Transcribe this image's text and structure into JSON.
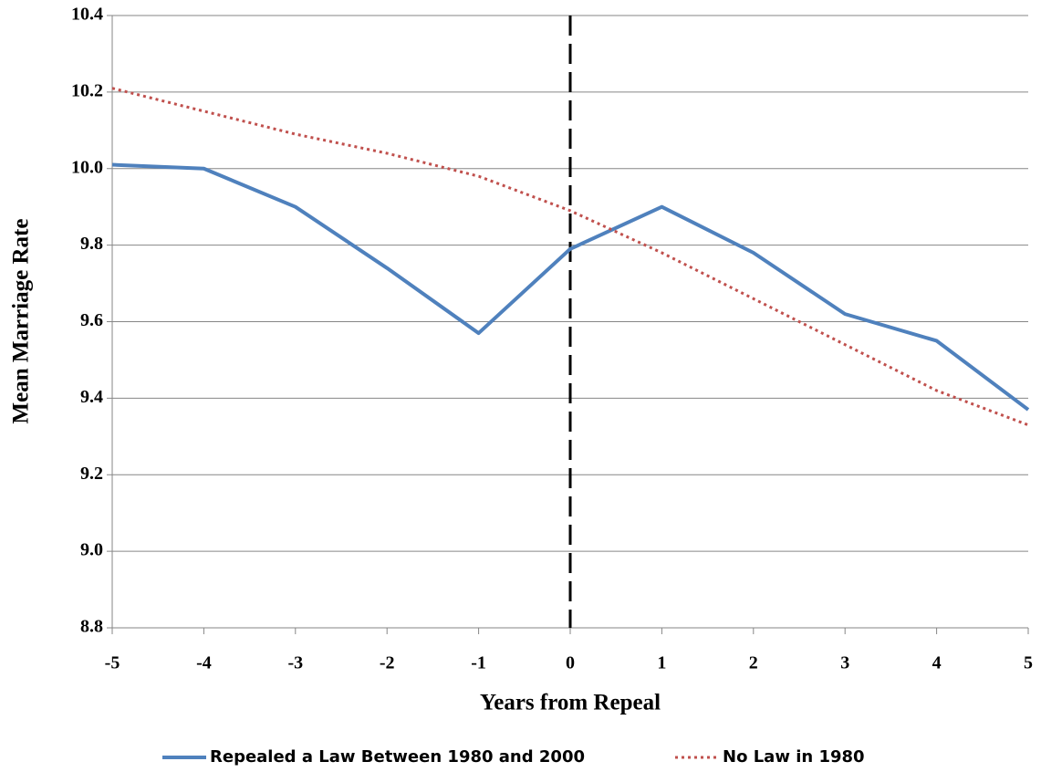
{
  "chart_data": {
    "type": "line",
    "x_label": "Years from Repeal",
    "y_label": "Mean Marriage Rate",
    "x": [
      -5,
      -4,
      -3,
      -2,
      -1,
      0,
      1,
      2,
      3,
      4,
      5
    ],
    "series": [
      {
        "name": "Repealed a Law Between 1980 and 2000",
        "color": "#4f81bd",
        "style": "solid",
        "values": [
          10.01,
          10.0,
          9.9,
          9.74,
          9.57,
          9.79,
          9.9,
          9.78,
          9.62,
          9.55,
          9.37
        ]
      },
      {
        "name": "No Law in 1980",
        "color": "#c0504d",
        "style": "dotted",
        "values": [
          10.21,
          10.15,
          10.09,
          10.04,
          9.98,
          9.89,
          9.78,
          9.66,
          9.54,
          9.42,
          9.33
        ]
      }
    ],
    "xlim": [
      -5,
      5
    ],
    "xticks": [
      -5,
      -4,
      -3,
      -2,
      -1,
      0,
      1,
      2,
      3,
      4,
      5
    ],
    "ylim": [
      8.8,
      10.4
    ],
    "yticks": [
      8.8,
      {
        "value": 9,
        "label": "9.0"
      },
      9.2,
      9.4,
      9.6,
      9.8,
      {
        "value": 10,
        "label": "10.0"
      },
      10.2,
      10.4
    ],
    "grid": true,
    "vline": 0,
    "legend": "bottom"
  }
}
